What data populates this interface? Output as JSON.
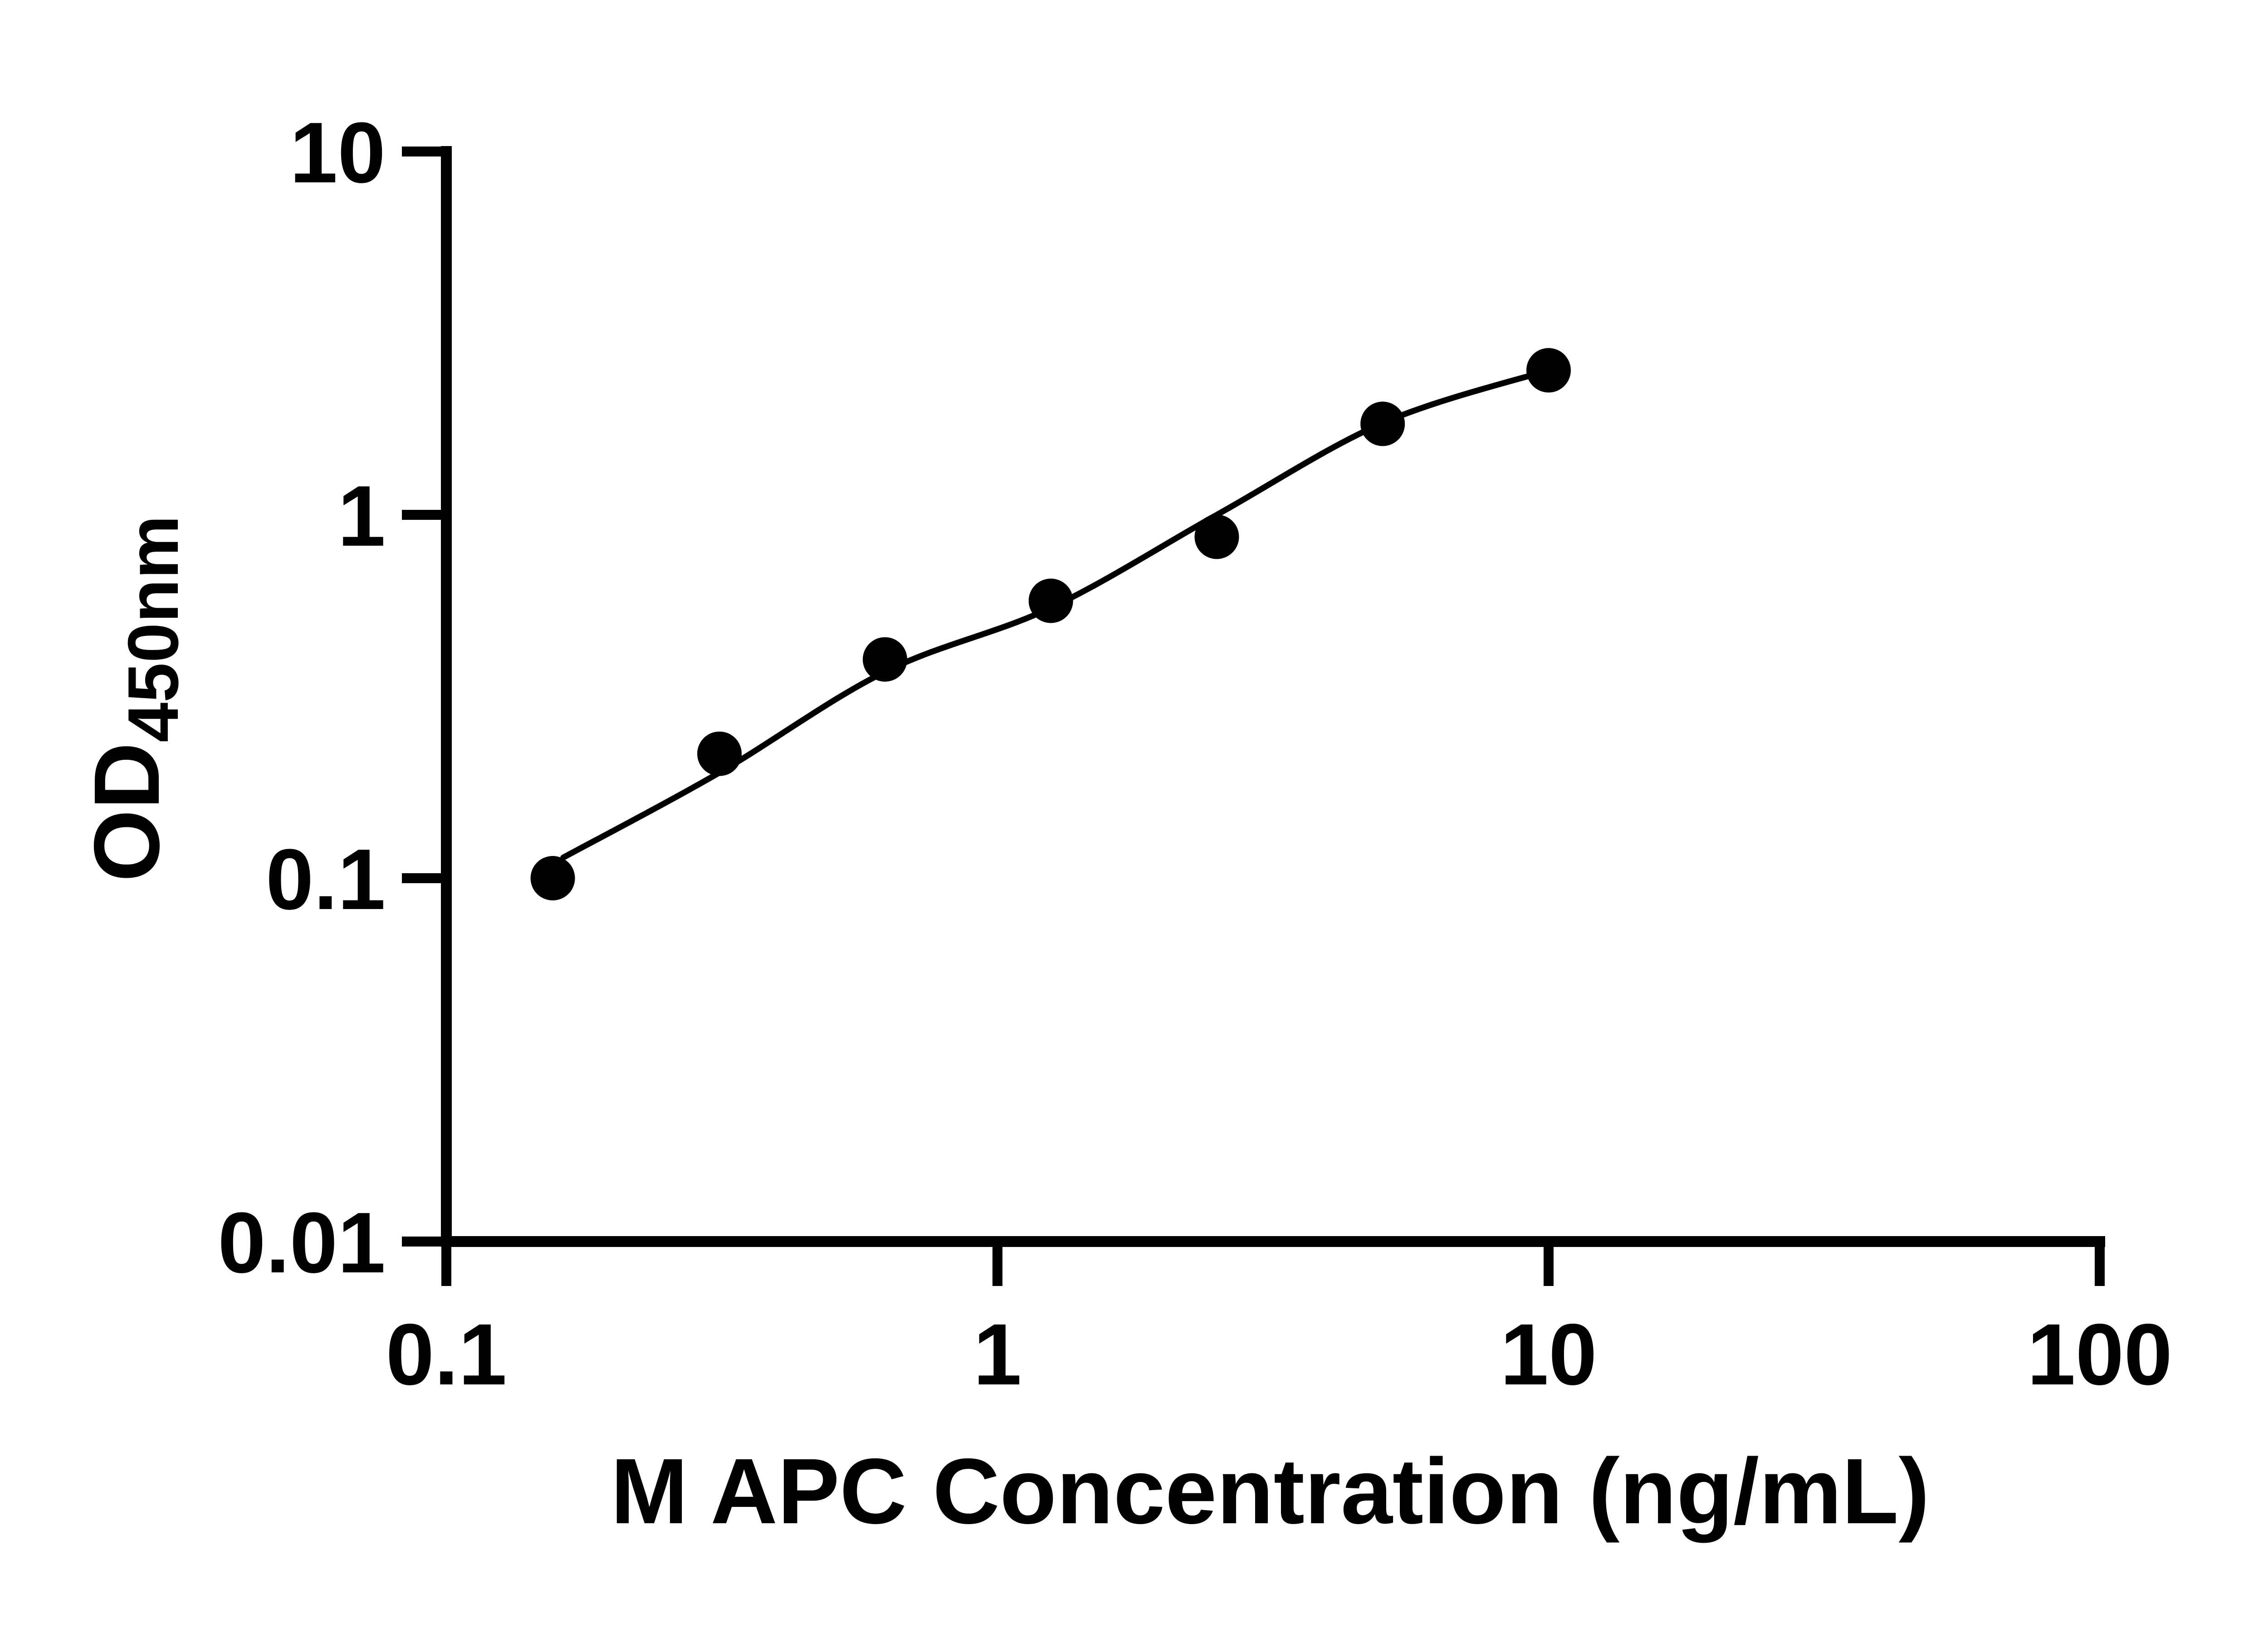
{
  "figure": {
    "background_color": "#ffffff",
    "ink_color": "#000000"
  },
  "chart_data": {
    "type": "scatter",
    "title": "",
    "xlabel": "M APC Concentration (ng/mL)",
    "ylabel_main": "OD",
    "ylabel_sub": "450nm",
    "x_scale": "log10",
    "y_scale": "log10",
    "xlim": [
      0.1,
      100
    ],
    "ylim": [
      0.01,
      10
    ],
    "grid": false,
    "legend": "none",
    "marker": "filled-circle",
    "marker_color": "#000000",
    "curve_color": "#000000",
    "x_ticks": {
      "values": [
        0.1,
        1,
        10,
        100
      ],
      "labels": [
        "0.1",
        "1",
        "10",
        "100"
      ]
    },
    "y_ticks": {
      "values": [
        10,
        1,
        0.1,
        0.01
      ],
      "labels": [
        "10",
        "1",
        "0.1",
        "0.01"
      ]
    },
    "series": [
      {
        "points": [
          [
            0.156,
            0.1
          ],
          [
            0.313,
            0.22
          ],
          [
            0.625,
            0.4
          ],
          [
            1.25,
            0.58
          ],
          [
            2.5,
            0.87
          ],
          [
            5,
            1.78
          ],
          [
            10,
            2.5
          ]
        ]
      }
    ],
    "fit_curve_points": [
      [
        0.163,
        0.114
      ],
      [
        0.3125,
        0.195
      ],
      [
        0.625,
        0.37
      ],
      [
        1.25,
        0.555
      ],
      [
        2.5,
        1.0
      ],
      [
        5,
        1.79
      ],
      [
        10,
        2.5
      ]
    ]
  }
}
